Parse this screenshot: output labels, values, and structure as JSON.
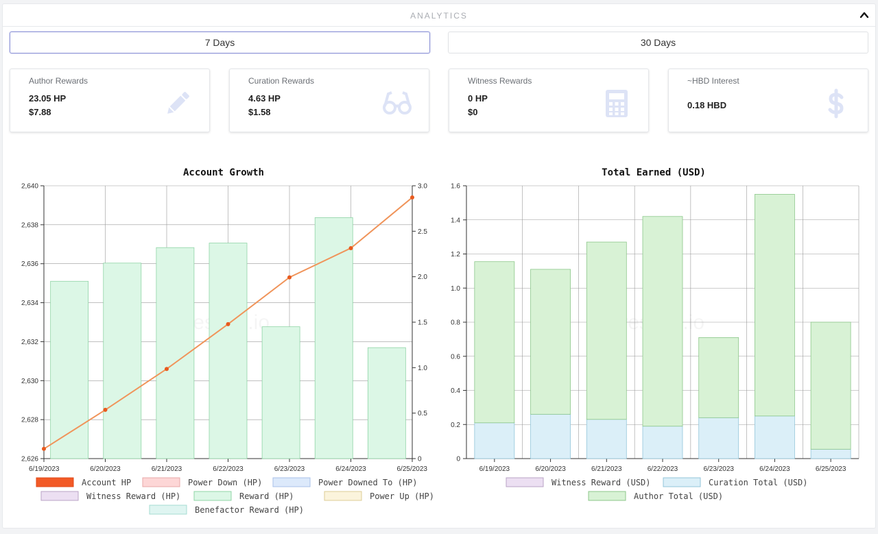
{
  "header": {
    "title": "ANALYTICS"
  },
  "tabs": [
    {
      "label": "7 Days",
      "active": true
    },
    {
      "label": "30 Days",
      "active": false
    }
  ],
  "cards": [
    {
      "title": "Author Rewards",
      "line1": "23.05 HP",
      "line2": "$7.88",
      "icon": "pencil-icon"
    },
    {
      "title": "Curation Rewards",
      "line1": "4.63 HP",
      "line2": "$1.58",
      "icon": "glasses-icon"
    },
    {
      "title": "Witness Rewards",
      "line1": "0 HP",
      "line2": "$0",
      "icon": "calculator-icon"
    },
    {
      "title": "~HBD Interest",
      "line1": "0.18 HBD",
      "line2": "",
      "icon": "dollar-icon"
    }
  ],
  "watermark": "hivestats.io",
  "colors": {
    "line": "#f0945a",
    "dot": "#e85a1e",
    "reward_fill": "#dcf7e6",
    "reward_stroke": "#8fd4a6",
    "author_fill": "#d8f2d5",
    "author_stroke": "#8cc78a",
    "curation_fill": "#dbeff8",
    "curation_stroke": "#93c6da",
    "grid": "#999999"
  },
  "chart_data": [
    {
      "type": "bar+line",
      "title": "Account Growth",
      "categories": [
        "6/19/2023",
        "6/20/2023",
        "6/21/2023",
        "6/22/2023",
        "6/23/2023",
        "6/24/2023",
        "6/25/2023"
      ],
      "left_axis": {
        "min": 2626,
        "max": 2640,
        "ticks": [
          "2,626",
          "2,628",
          "2,630",
          "2,632",
          "2,634",
          "2,636",
          "2,638",
          "2,640"
        ],
        "tick_values": [
          2626,
          2628,
          2630,
          2632,
          2634,
          2636,
          2638,
          2640
        ]
      },
      "right_axis": {
        "min": 0,
        "max": 3.0,
        "ticks": [
          "0",
          "0.5",
          "1.0",
          "1.5",
          "2.0",
          "2.5",
          "3.0"
        ],
        "tick_values": [
          0,
          0.5,
          1.0,
          1.5,
          2.0,
          2.5,
          3.0
        ]
      },
      "series": [
        {
          "name": "Account HP",
          "type": "line",
          "axis": "left",
          "values": [
            2626.5,
            2628.5,
            2630.6,
            2632.9,
            2635.3,
            2636.8,
            2639.4
          ]
        },
        {
          "name": "Reward (HP)",
          "type": "bar",
          "axis": "right",
          "values": [
            1.95,
            2.15,
            2.32,
            2.37,
            1.45,
            2.65,
            1.22
          ]
        }
      ],
      "legend": [
        {
          "label": "Account HP",
          "fill": "#f25a26",
          "stroke": "#e0491a"
        },
        {
          "label": "Power Down (HP)",
          "fill": "#fdd6d6",
          "stroke": "#e8a8a8"
        },
        {
          "label": "Power Downed To (HP)",
          "fill": "#dce9fb",
          "stroke": "#a9c1e8"
        },
        {
          "label": "Witness Reward (HP)",
          "fill": "#ecdff2",
          "stroke": "#b9a3c6"
        },
        {
          "label": "Reward (HP)",
          "fill": "#dcf7e6",
          "stroke": "#8fd4a6"
        },
        {
          "label": "Power Up (HP)",
          "fill": "#fbf4dc",
          "stroke": "#dccd96"
        },
        {
          "label": "Benefactor Reward (HP)",
          "fill": "#dff5f1",
          "stroke": "#a6dcd2"
        }
      ]
    },
    {
      "type": "stacked_bar",
      "title": "Total Earned (USD)",
      "categories": [
        "6/19/2023",
        "6/20/2023",
        "6/21/2023",
        "6/22/2023",
        "6/23/2023",
        "6/24/2023",
        "6/25/2023"
      ],
      "y_axis": {
        "min": 0,
        "max": 1.6,
        "ticks": [
          "0",
          "0.2",
          "0.4",
          "0.6",
          "0.8",
          "1.0",
          "1.2",
          "1.4",
          "1.6"
        ],
        "tick_values": [
          0,
          0.2,
          0.4,
          0.6,
          0.8,
          1.0,
          1.2,
          1.4,
          1.6
        ]
      },
      "series": [
        {
          "name": "Witness Reward (USD)",
          "values": [
            0,
            0,
            0,
            0,
            0,
            0,
            0
          ]
        },
        {
          "name": "Curation Total (USD)",
          "values": [
            0.21,
            0.26,
            0.23,
            0.19,
            0.24,
            0.25,
            0.055
          ]
        },
        {
          "name": "Author Total (USD)",
          "values": [
            0.945,
            0.85,
            1.04,
            1.23,
            0.47,
            1.3,
            0.745
          ]
        }
      ],
      "legend": [
        {
          "label": "Witness Reward (USD)",
          "fill": "#ecdff2",
          "stroke": "#b9a3c6"
        },
        {
          "label": "Curation Total (USD)",
          "fill": "#dbeff8",
          "stroke": "#93c6da"
        },
        {
          "label": "Author Total (USD)",
          "fill": "#d8f2d5",
          "stroke": "#8cc78a"
        }
      ]
    }
  ]
}
